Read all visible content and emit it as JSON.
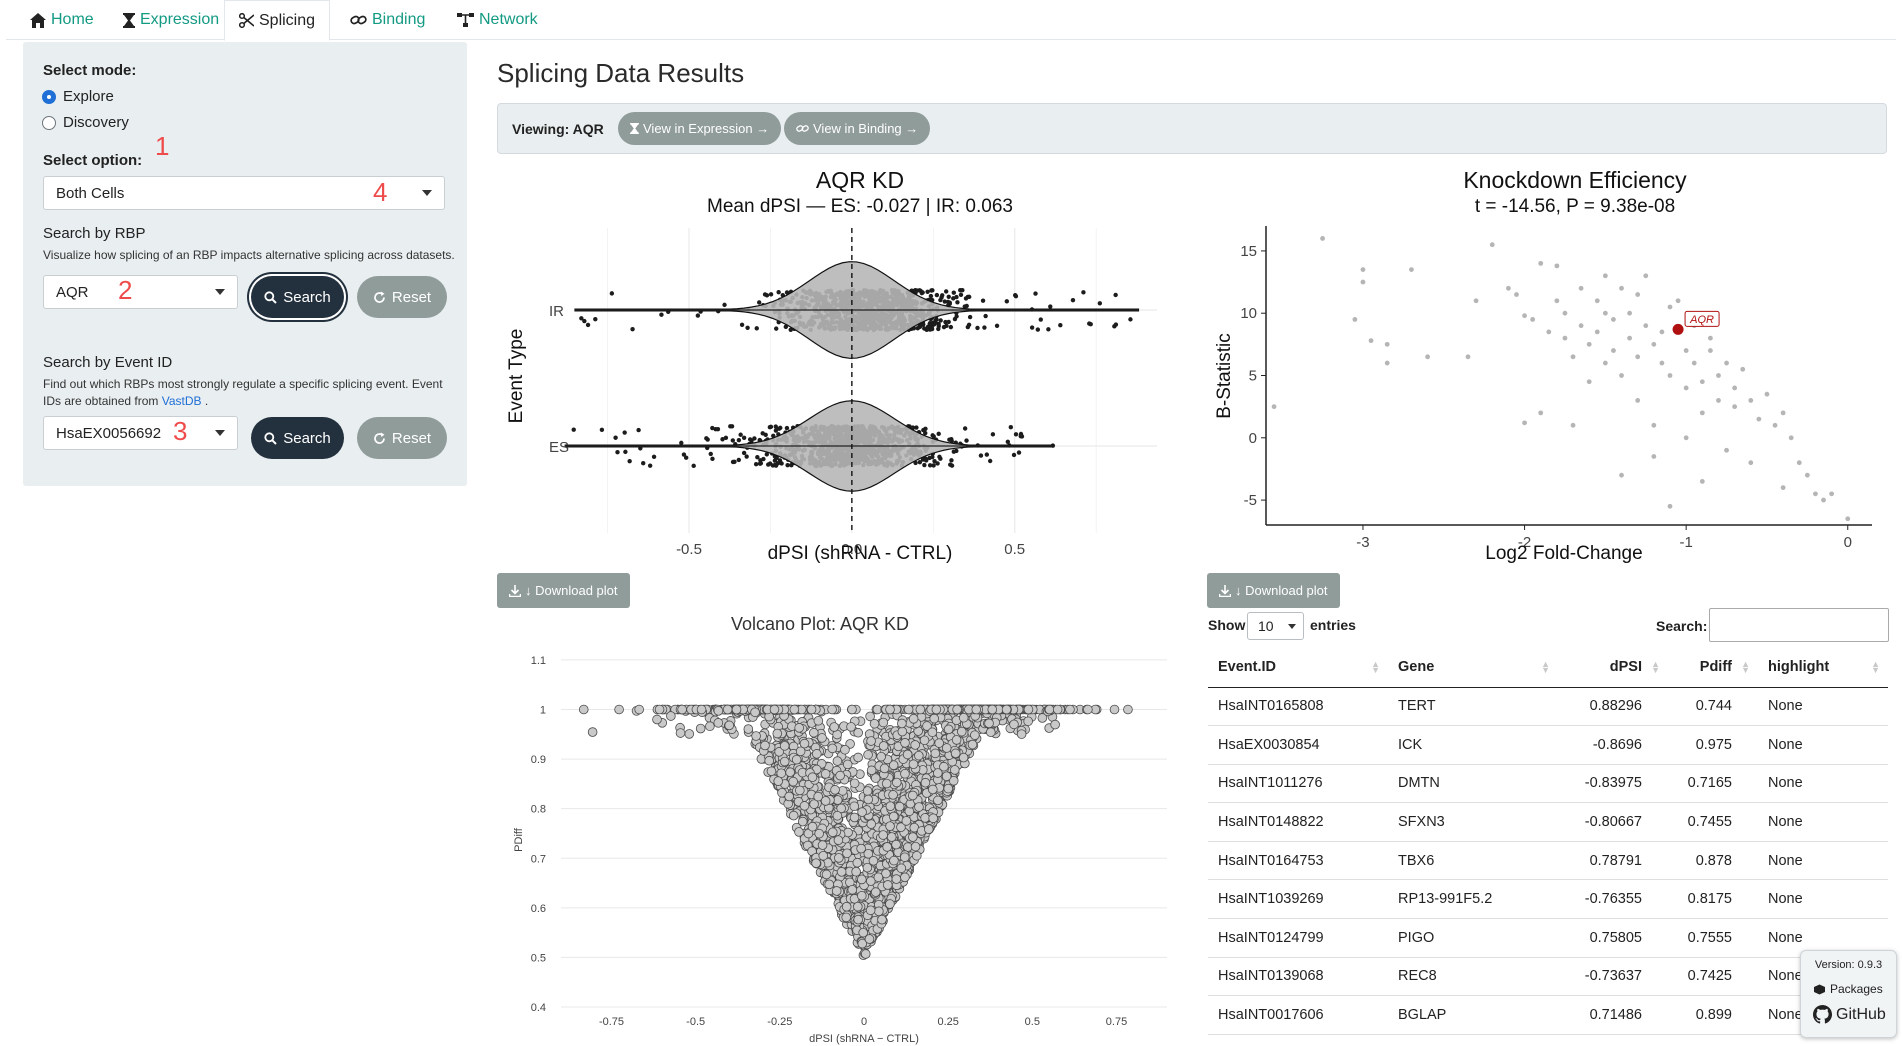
{
  "nav": {
    "tabs": [
      {
        "label": "Home",
        "icon": "home-icon"
      },
      {
        "label": "Expression",
        "icon": "hourglass-icon"
      },
      {
        "label": "Splicing",
        "icon": "scissors-icon"
      },
      {
        "label": "Binding",
        "icon": "link-icon"
      },
      {
        "label": "Network",
        "icon": "network-icon"
      }
    ],
    "active": "Splicing"
  },
  "sidebar": {
    "mode_label": "Select mode:",
    "modes": [
      "Explore",
      "Discovery"
    ],
    "selected_mode": "Explore",
    "option_label": "Select option:",
    "option_value": "Both Cells",
    "rbp_label": "Search by RBP",
    "rbp_help": "Visualize how splicing of an RBP impacts alternative splicing across datasets.",
    "rbp_value": "AQR",
    "search_label": "Search",
    "reset_label": "Reset",
    "event_label": "Search by Event ID",
    "event_help_1": "Find out which RBPs most strongly regulate a specific splicing event. Event",
    "event_help_2": "IDs are obtained from",
    "event_help_link": "VastDB",
    "event_help_end": ".",
    "event_value": "HsaEX0056692",
    "markers": [
      "1",
      "2",
      "3",
      "4"
    ]
  },
  "main": {
    "title": "Splicing Data Results",
    "viewing_label": "Viewing: AQR",
    "btn_expression": "View in Expression →",
    "btn_binding": "View in Binding →",
    "download_label": "↓ Download plot"
  },
  "colors": {
    "accent": "#139a83",
    "dark_button": "#23303d",
    "grey_button": "#909c9a",
    "sidebar_bg": "#e9eef0",
    "highlight_point": "#b01010",
    "link": "#1f6fd6"
  },
  "chart_data": [
    {
      "type": "violin",
      "title": "AQR KD",
      "subtitle": "Mean dPSI — ES: -0.027 | IR: 0.063",
      "xlabel": "dPSI (shRNA - CTRL)",
      "ylabel": "Event Type",
      "categories": [
        "IR",
        "ES"
      ],
      "xticks": [
        -0.5,
        0.0,
        0.5
      ],
      "xlim": [
        -0.85,
        0.9
      ],
      "series": [
        {
          "category": "IR",
          "mean": 0.063,
          "range": [
            -0.85,
            0.88
          ]
        },
        {
          "category": "ES",
          "mean": -0.027,
          "range": [
            -0.88,
            0.62
          ]
        }
      ]
    },
    {
      "type": "scatter",
      "title": "Knockdown Efficiency",
      "subtitle": "t = -14.56, P = 9.38e-08",
      "xlabel": "Log2 Fold-Change",
      "ylabel": "B-Statistic",
      "xticks": [
        -3,
        -2,
        -1,
        0
      ],
      "yticks": [
        -5,
        0,
        5,
        10,
        15
      ],
      "xlim": [
        -3.6,
        0.15
      ],
      "ylim": [
        -7,
        17
      ],
      "highlight": {
        "label": "AQR",
        "x": -1.05,
        "y": 8.7
      },
      "points": [
        [
          -3.55,
          2.5
        ],
        [
          -3.25,
          16
        ],
        [
          -3.05,
          9.5
        ],
        [
          -3.0,
          13.5
        ],
        [
          -3.0,
          12.5
        ],
        [
          -2.95,
          7.8
        ],
        [
          -2.85,
          7.5
        ],
        [
          -2.85,
          6.0
        ],
        [
          -2.7,
          13.5
        ],
        [
          -2.6,
          6.5
        ],
        [
          -2.3,
          11
        ],
        [
          -2.35,
          6.5
        ],
        [
          -2.2,
          15.5
        ],
        [
          -2.1,
          12
        ],
        [
          -2.05,
          11.5
        ],
        [
          -2.0,
          9.8
        ],
        [
          -1.95,
          9.5
        ],
        [
          -1.9,
          14
        ],
        [
          -1.85,
          8.5
        ],
        [
          -1.8,
          13.8
        ],
        [
          -1.8,
          11
        ],
        [
          -1.75,
          10
        ],
        [
          -1.75,
          8
        ],
        [
          -1.7,
          6.5
        ],
        [
          -1.7,
          1
        ],
        [
          -1.65,
          12
        ],
        [
          -1.65,
          9
        ],
        [
          -1.6,
          7.5
        ],
        [
          -1.6,
          4.5
        ],
        [
          -1.55,
          11
        ],
        [
          -1.55,
          8.5
        ],
        [
          -1.5,
          13
        ],
        [
          -1.5,
          10
        ],
        [
          -1.5,
          6
        ],
        [
          -1.45,
          9.5
        ],
        [
          -1.45,
          7
        ],
        [
          -1.4,
          12
        ],
        [
          -1.4,
          5
        ],
        [
          -1.35,
          8
        ],
        [
          -1.35,
          10
        ],
        [
          -1.3,
          11.5
        ],
        [
          -1.3,
          6.5
        ],
        [
          -1.3,
          3
        ],
        [
          -1.25,
          13
        ],
        [
          -1.25,
          9
        ],
        [
          -1.2,
          7.5
        ],
        [
          -1.2,
          1
        ],
        [
          -1.15,
          8.5
        ],
        [
          -1.15,
          6
        ],
        [
          -1.1,
          10.5
        ],
        [
          -1.1,
          5
        ],
        [
          -1.05,
          11
        ],
        [
          -1.0,
          7
        ],
        [
          -1.0,
          4
        ],
        [
          -1.0,
          0
        ],
        [
          -0.95,
          9
        ],
        [
          -0.95,
          6
        ],
        [
          -0.9,
          4.5
        ],
        [
          -0.9,
          2
        ],
        [
          -0.85,
          8
        ],
        [
          -0.85,
          7
        ],
        [
          -0.8,
          5
        ],
        [
          -0.8,
          3
        ],
        [
          -0.75,
          6
        ],
        [
          -0.75,
          -1
        ],
        [
          -0.7,
          4
        ],
        [
          -0.7,
          2.5
        ],
        [
          -0.65,
          5.5
        ],
        [
          -0.6,
          3
        ],
        [
          -0.6,
          -2
        ],
        [
          -0.55,
          1.5
        ],
        [
          -0.5,
          3.5
        ],
        [
          -0.45,
          1
        ],
        [
          -0.4,
          2
        ],
        [
          -0.4,
          -4
        ],
        [
          -0.35,
          0
        ],
        [
          -0.3,
          -2
        ],
        [
          -0.25,
          -3
        ],
        [
          -0.2,
          -4.5
        ],
        [
          -0.15,
          -5
        ],
        [
          -0.1,
          -4.5
        ],
        [
          0.0,
          -6.5
        ],
        [
          -1.1,
          -5.5
        ],
        [
          -1.4,
          -3
        ],
        [
          -1.9,
          2
        ],
        [
          -2.0,
          1.2
        ],
        [
          -1.2,
          -1.5
        ],
        [
          -0.9,
          -3.5
        ]
      ]
    },
    {
      "type": "scatter",
      "title": "Volcano Plot: AQR KD",
      "xlabel": "dPSI (shRNA − CTRL)",
      "ylabel": "PDiff",
      "xticks": [
        -0.75,
        -0.5,
        -0.25,
        0,
        0.25,
        0.5,
        0.75
      ],
      "yticks": [
        0.4,
        0.5,
        0.6,
        0.7,
        0.8,
        0.9,
        1,
        1.1
      ],
      "xlim": [
        -0.9,
        0.9
      ],
      "ylim": [
        0.4,
        1.12
      ],
      "note": "thousands of points forming a V shape around dPSI = 0, PDiff between 0.5 and 1"
    }
  ],
  "table": {
    "show_label": "Show",
    "entries_value": "10",
    "entries_label": "entries",
    "search_label": "Search:",
    "columns": [
      "Event.ID",
      "Gene",
      "dPSI",
      "Pdiff",
      "highlight"
    ],
    "rows": [
      [
        "HsaINT0165808",
        "TERT",
        "0.88296",
        "0.744",
        "None"
      ],
      [
        "HsaEX0030854",
        "ICK",
        "-0.8696",
        "0.975",
        "None"
      ],
      [
        "HsaINT1011276",
        "DMTN",
        "-0.83975",
        "0.7165",
        "None"
      ],
      [
        "HsaINT0148822",
        "SFXN3",
        "-0.80667",
        "0.7455",
        "None"
      ],
      [
        "HsaINT0164753",
        "TBX6",
        "0.78791",
        "0.878",
        "None"
      ],
      [
        "HsaINT1039269",
        "RP13-991F5.2",
        "-0.76355",
        "0.8175",
        "None"
      ],
      [
        "HsaINT0124799",
        "PIGO",
        "0.75805",
        "0.7555",
        "None"
      ],
      [
        "HsaINT0139068",
        "REC8",
        "-0.73637",
        "0.7425",
        "None"
      ],
      [
        "HsaINT0017606",
        "BGLAP",
        "0.71486",
        "0.899",
        "None"
      ]
    ]
  },
  "version": {
    "label": "Version: 0.9.3",
    "packages": "Packages",
    "github": "GitHub"
  }
}
